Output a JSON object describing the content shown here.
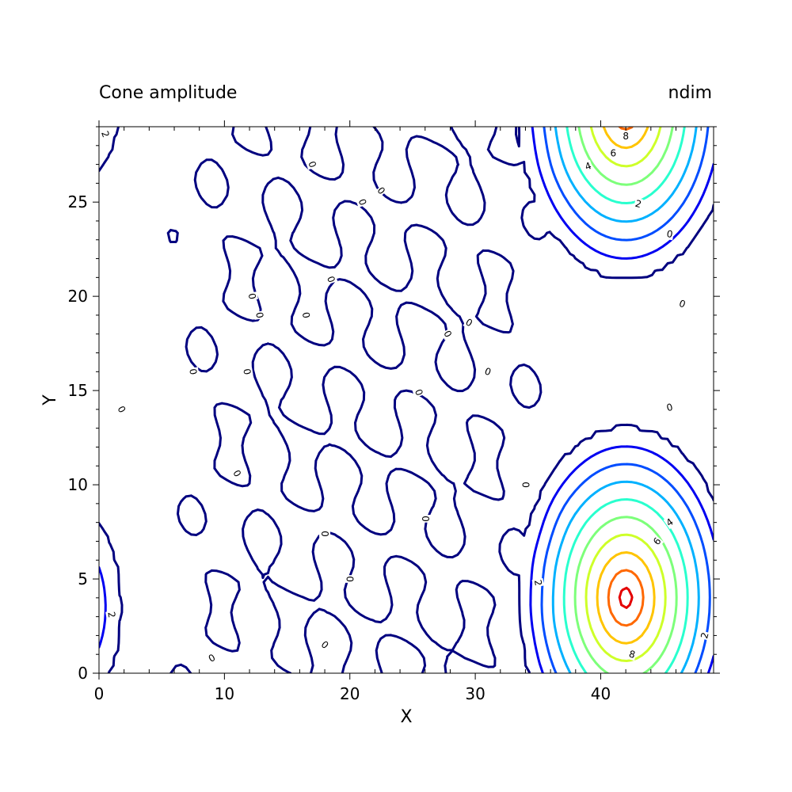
{
  "chart_data": {
    "type": "contour",
    "title_left": "Cone amplitude",
    "title_right": "ndim",
    "xlabel": "X",
    "ylabel": "Y",
    "xlim": [
      0,
      49
    ],
    "ylim": [
      0,
      29
    ],
    "x_ticks": [
      0,
      10,
      20,
      30,
      40
    ],
    "y_ticks": [
      0,
      5,
      10,
      15,
      20,
      25
    ],
    "x_tick_labels": [
      "0",
      "10",
      "20",
      "30",
      "40"
    ],
    "y_tick_labels": [
      "0",
      "5",
      "10",
      "15",
      "20",
      "25"
    ],
    "levels": [
      0,
      1,
      2,
      3,
      4,
      5,
      6,
      7,
      8,
      9
    ],
    "level_colors": [
      "#00007f",
      "#0000f1",
      "#004dff",
      "#00b1ff",
      "#29ffce",
      "#7dff7a",
      "#ceff29",
      "#ffc400",
      "#ff6800",
      "#e40000"
    ],
    "peaks": [
      {
        "name": "lower-right cone",
        "x": 42,
        "y": 4,
        "amplitude": 9.6
      },
      {
        "name": "upper-right cone",
        "x": 42,
        "y": 30,
        "amplitude": 9.2
      },
      {
        "name": "lower-left cone",
        "x": -1.5,
        "y": 3.5,
        "amplitude": 2.8
      },
      {
        "name": "upper-left cone",
        "x": -1.5,
        "y": 31,
        "amplitude": 2.6
      }
    ],
    "contour_labels": [
      {
        "text": "8",
        "x": 42.5,
        "y": 1.0,
        "angle": -15
      },
      {
        "text": "6",
        "x": 44.5,
        "y": 7.0,
        "angle": 50
      },
      {
        "text": "4",
        "x": 45.5,
        "y": 8.0,
        "angle": 35
      },
      {
        "text": "2",
        "x": 35.0,
        "y": 4.8,
        "angle": -80
      },
      {
        "text": "2",
        "x": 48.3,
        "y": 2.0,
        "angle": 75
      },
      {
        "text": "8",
        "x": 42.0,
        "y": 28.5,
        "angle": 0
      },
      {
        "text": "6",
        "x": 41.0,
        "y": 27.6,
        "angle": 0
      },
      {
        "text": "4",
        "x": 39.0,
        "y": 26.9,
        "angle": 20
      },
      {
        "text": "2",
        "x": 43.0,
        "y": 24.9,
        "angle": -15
      },
      {
        "text": "0",
        "x": 45.5,
        "y": 23.3,
        "angle": -10
      },
      {
        "text": "0",
        "x": 46.5,
        "y": 19.6,
        "angle": -20
      },
      {
        "text": "0",
        "x": 45.5,
        "y": 14.1,
        "angle": 15
      },
      {
        "text": "2",
        "x": 1.0,
        "y": 3.1,
        "angle": -80
      },
      {
        "text": "2",
        "x": 0.5,
        "y": 28.6,
        "angle": -70
      },
      {
        "text": "0",
        "x": 1.8,
        "y": 14.0,
        "angle": -60
      },
      {
        "text": "0",
        "x": 11.0,
        "y": 10.6,
        "angle": -60
      },
      {
        "text": "0",
        "x": 9.0,
        "y": 0.8,
        "angle": 30
      },
      {
        "text": "0",
        "x": 7.5,
        "y": 16.0,
        "angle": -80
      },
      {
        "text": "0",
        "x": 11.8,
        "y": 16.0,
        "angle": -80
      },
      {
        "text": "0",
        "x": 12.2,
        "y": 20.0,
        "angle": -80
      },
      {
        "text": "0",
        "x": 12.8,
        "y": 19.0,
        "angle": -80
      },
      {
        "text": "0",
        "x": 16.5,
        "y": 19.0,
        "angle": -80
      },
      {
        "text": "0",
        "x": 17.0,
        "y": 27.0,
        "angle": -70
      },
      {
        "text": "0",
        "x": 18.5,
        "y": 20.9,
        "angle": -70
      },
      {
        "text": "0",
        "x": 21.0,
        "y": 25.0,
        "angle": -70
      },
      {
        "text": "0",
        "x": 22.5,
        "y": 25.6,
        "angle": -50
      },
      {
        "text": "0",
        "x": 27.8,
        "y": 18.0,
        "angle": -60
      },
      {
        "text": "0",
        "x": 29.5,
        "y": 18.6,
        "angle": -30
      },
      {
        "text": "0",
        "x": 31.0,
        "y": 16.0,
        "angle": -20
      },
      {
        "text": "0",
        "x": 25.5,
        "y": 14.9,
        "angle": -70
      },
      {
        "text": "0",
        "x": 18.0,
        "y": 7.4,
        "angle": -90
      },
      {
        "text": "0",
        "x": 20.0,
        "y": 5.0,
        "angle": -90
      },
      {
        "text": "0",
        "x": 26.0,
        "y": 8.2,
        "angle": -90
      },
      {
        "text": "0",
        "x": 34.0,
        "y": 10.0,
        "angle": -90
      },
      {
        "text": "0",
        "x": 18.0,
        "y": 1.5,
        "angle": -40
      }
    ]
  }
}
